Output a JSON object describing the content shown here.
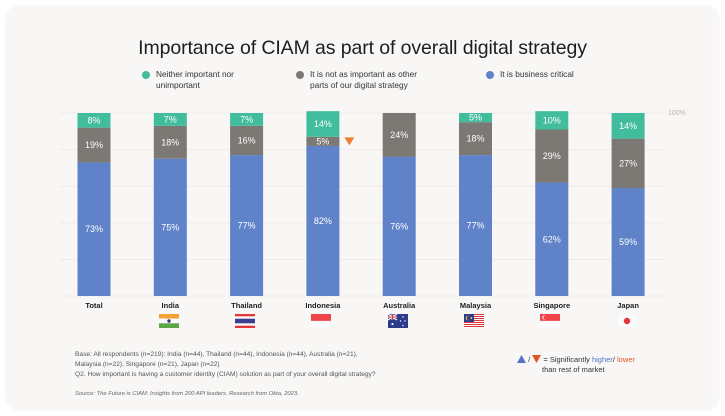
{
  "colors": {
    "neither": "#41bc9c",
    "not_as_important": "#7c7874",
    "business_critical": "#5f82c8",
    "lower_marker": "#f08030",
    "higher_marker": "#5573c6",
    "lower_text": "#e2552a"
  },
  "chart_data": {
    "type": "bar",
    "stacked": true,
    "orientation": "vertical",
    "title": "Importance of CIAM as part of overall digital strategy",
    "xlabel": "",
    "ylabel": "",
    "ylim": [
      0,
      100
    ],
    "y_max_label": "100%",
    "grid": true,
    "legend_position": "top",
    "categories": [
      "Total",
      "India",
      "Thailand",
      "Indonesia",
      "Australia",
      "Malaysia",
      "Singapore",
      "Japan"
    ],
    "series": [
      {
        "name": "It is business critical",
        "key": "business_critical",
        "values": [
          73,
          75,
          77,
          82,
          76,
          77,
          62,
          59
        ],
        "labels": [
          "73%",
          "75%",
          "77%",
          "82%",
          "76%",
          "77%",
          "62%",
          "59%"
        ]
      },
      {
        "name": "It is not as important as other parts of our digital strategy",
        "key": "not_as_important",
        "values": [
          19,
          18,
          16,
          5,
          24,
          18,
          29,
          27
        ],
        "labels": [
          "19%",
          "18%",
          "16%",
          "5%",
          "24%",
          "18%",
          "29%",
          "27%"
        ]
      },
      {
        "name": "Neither important nor unimportant",
        "key": "neither",
        "values": [
          8,
          7,
          7,
          14,
          0,
          5,
          10,
          14
        ],
        "labels": [
          "8%",
          "7%",
          "7%",
          "14%",
          "",
          "5%",
          "10%",
          "14%"
        ]
      }
    ],
    "annotations": [
      {
        "category": "Indonesia",
        "series": "It is not as important as other parts of our digital strategy",
        "marker": "down-triangle",
        "meaning": "Significantly lower than rest of market"
      }
    ]
  },
  "legend": [
    {
      "key": "neither",
      "line1": "Neither important nor",
      "line2": "unimportant"
    },
    {
      "key": "not_as_important",
      "line1": "It is not as important as other",
      "line2": "parts of our digital strategy"
    },
    {
      "key": "business_critical",
      "line1": "It is business critical",
      "line2": ""
    }
  ],
  "flags": [
    {
      "country": "India",
      "icon": "india-flag-icon"
    },
    {
      "country": "Thailand",
      "icon": "thailand-flag-icon"
    },
    {
      "country": "Indonesia",
      "icon": "indonesia-flag-icon"
    },
    {
      "country": "Australia",
      "icon": "australia-flag-icon"
    },
    {
      "country": "Malaysia",
      "icon": "malaysia-flag-icon"
    },
    {
      "country": "Singapore",
      "icon": "singapore-flag-icon"
    },
    {
      "country": "Japan",
      "icon": "japan-flag-icon"
    }
  ],
  "footnote": {
    "line1": "Base: All respondents (n=219): India (n=44), Thailand (n=44), Indonesia (n=44), Australia (n=21),",
    "line2": "Malaysia (n=22), Singapore (n=21), Japan (n=22)",
    "line3": "Q2.  How important is having a customer identity (CIAM) solution as part of your overall digital strategy?"
  },
  "source": "Source: The Future is CIAM: Insights from 200 API leaders. Research from Okta, 2023.",
  "significance_legend": {
    "separator": "/",
    "prefix": "= Significantly ",
    "higher": "higher",
    "slash": "/ ",
    "lower": "lower",
    "line2": "than rest of market"
  }
}
